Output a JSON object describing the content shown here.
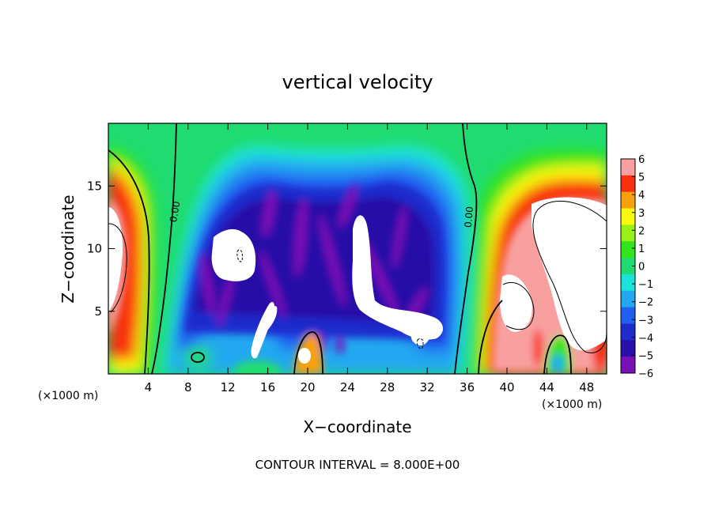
{
  "chart_data": {
    "type": "heatmap",
    "title": "vertical velocity",
    "xlabel": "X−coordinate",
    "ylabel": "Z−coordinate",
    "x_unit_left": "(×1000 m)",
    "x_unit_right": "(×1000 m)",
    "footer": "CONTOUR INTERVAL = 8.000E+00",
    "xlim": [
      0,
      50
    ],
    "ylim": [
      0,
      20
    ],
    "x_ticks": [
      4,
      8,
      12,
      16,
      20,
      24,
      28,
      32,
      36,
      40,
      44,
      48
    ],
    "x_tick_labels": [
      "4",
      "8",
      "12",
      "16",
      "20",
      "24",
      "28",
      "32",
      "36",
      "40",
      "44",
      "48"
    ],
    "y_ticks": [
      5,
      10,
      15
    ],
    "y_tick_labels": [
      "5",
      "10",
      "15"
    ],
    "colorbar": {
      "min": -6,
      "max": 6,
      "ticks": [
        6,
        5,
        4,
        3,
        2,
        1,
        0,
        -1,
        -2,
        -3,
        -4,
        -5,
        -6
      ],
      "tick_labels": [
        "6",
        "5",
        "4",
        "3",
        "2",
        "1",
        "0",
        "−1",
        "−2",
        "−3",
        "−4",
        "−5",
        "−6"
      ],
      "colors": [
        "#7a10b8",
        "#2810a8",
        "#1f2ccc",
        "#2060f0",
        "#20a8f0",
        "#1ae4d8",
        "#20dc70",
        "#34e41c",
        "#98f016",
        "#f8f810",
        "#f8a010",
        "#f83010",
        "#f8a0a0"
      ]
    },
    "contour_labels": [
      {
        "text": "0.00",
        "x": 7.0,
        "z": 12.9
      },
      {
        "text": "0.00",
        "x": 36.5,
        "z": 12.5
      }
    ],
    "features": [
      {
        "name": "left updraft",
        "value": 6,
        "x": [
          0,
          4
        ],
        "z": [
          2,
          16
        ]
      },
      {
        "name": "central downdraft",
        "value": -6,
        "x": [
          9,
          35
        ],
        "z": [
          1,
          15
        ]
      },
      {
        "name": "right updraft",
        "value": 6,
        "x": [
          38,
          50
        ],
        "z": [
          2,
          16
        ]
      }
    ]
  }
}
